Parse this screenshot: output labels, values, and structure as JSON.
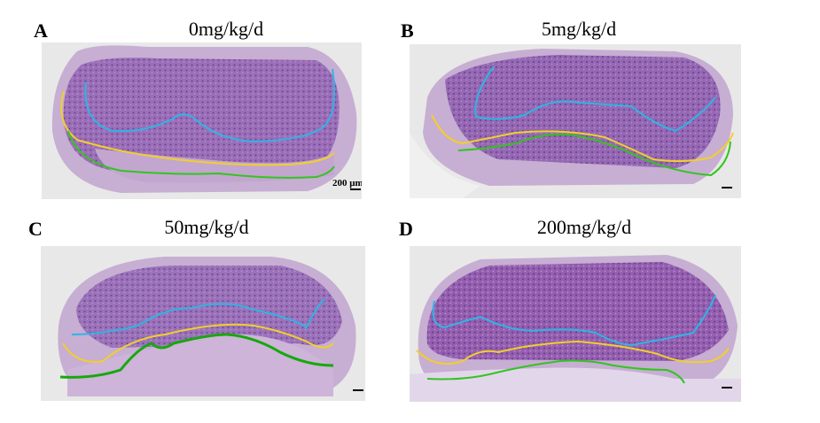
{
  "figure": {
    "panels": [
      {
        "letter": "A",
        "title": "0mg/kg/d",
        "scale_bar_label": "200 μm"
      },
      {
        "letter": "B",
        "title": "5mg/kg/d",
        "scale_bar_label": ""
      },
      {
        "letter": "C",
        "title": "50mg/kg/d",
        "scale_bar_label": ""
      },
      {
        "letter": "D",
        "title": "200mg/kg/d",
        "scale_bar_label": ""
      }
    ],
    "line_colors": {
      "cyan": "#2fb4e6",
      "yellow": "#f2cf2a",
      "green": "#33c41e",
      "green_dark": "#17a80c"
    },
    "tissue_colors": {
      "dense": "#8a5ba8",
      "loose": "#c7aed3",
      "pink": "#d98fb8",
      "background": "#e6e6e6"
    }
  }
}
